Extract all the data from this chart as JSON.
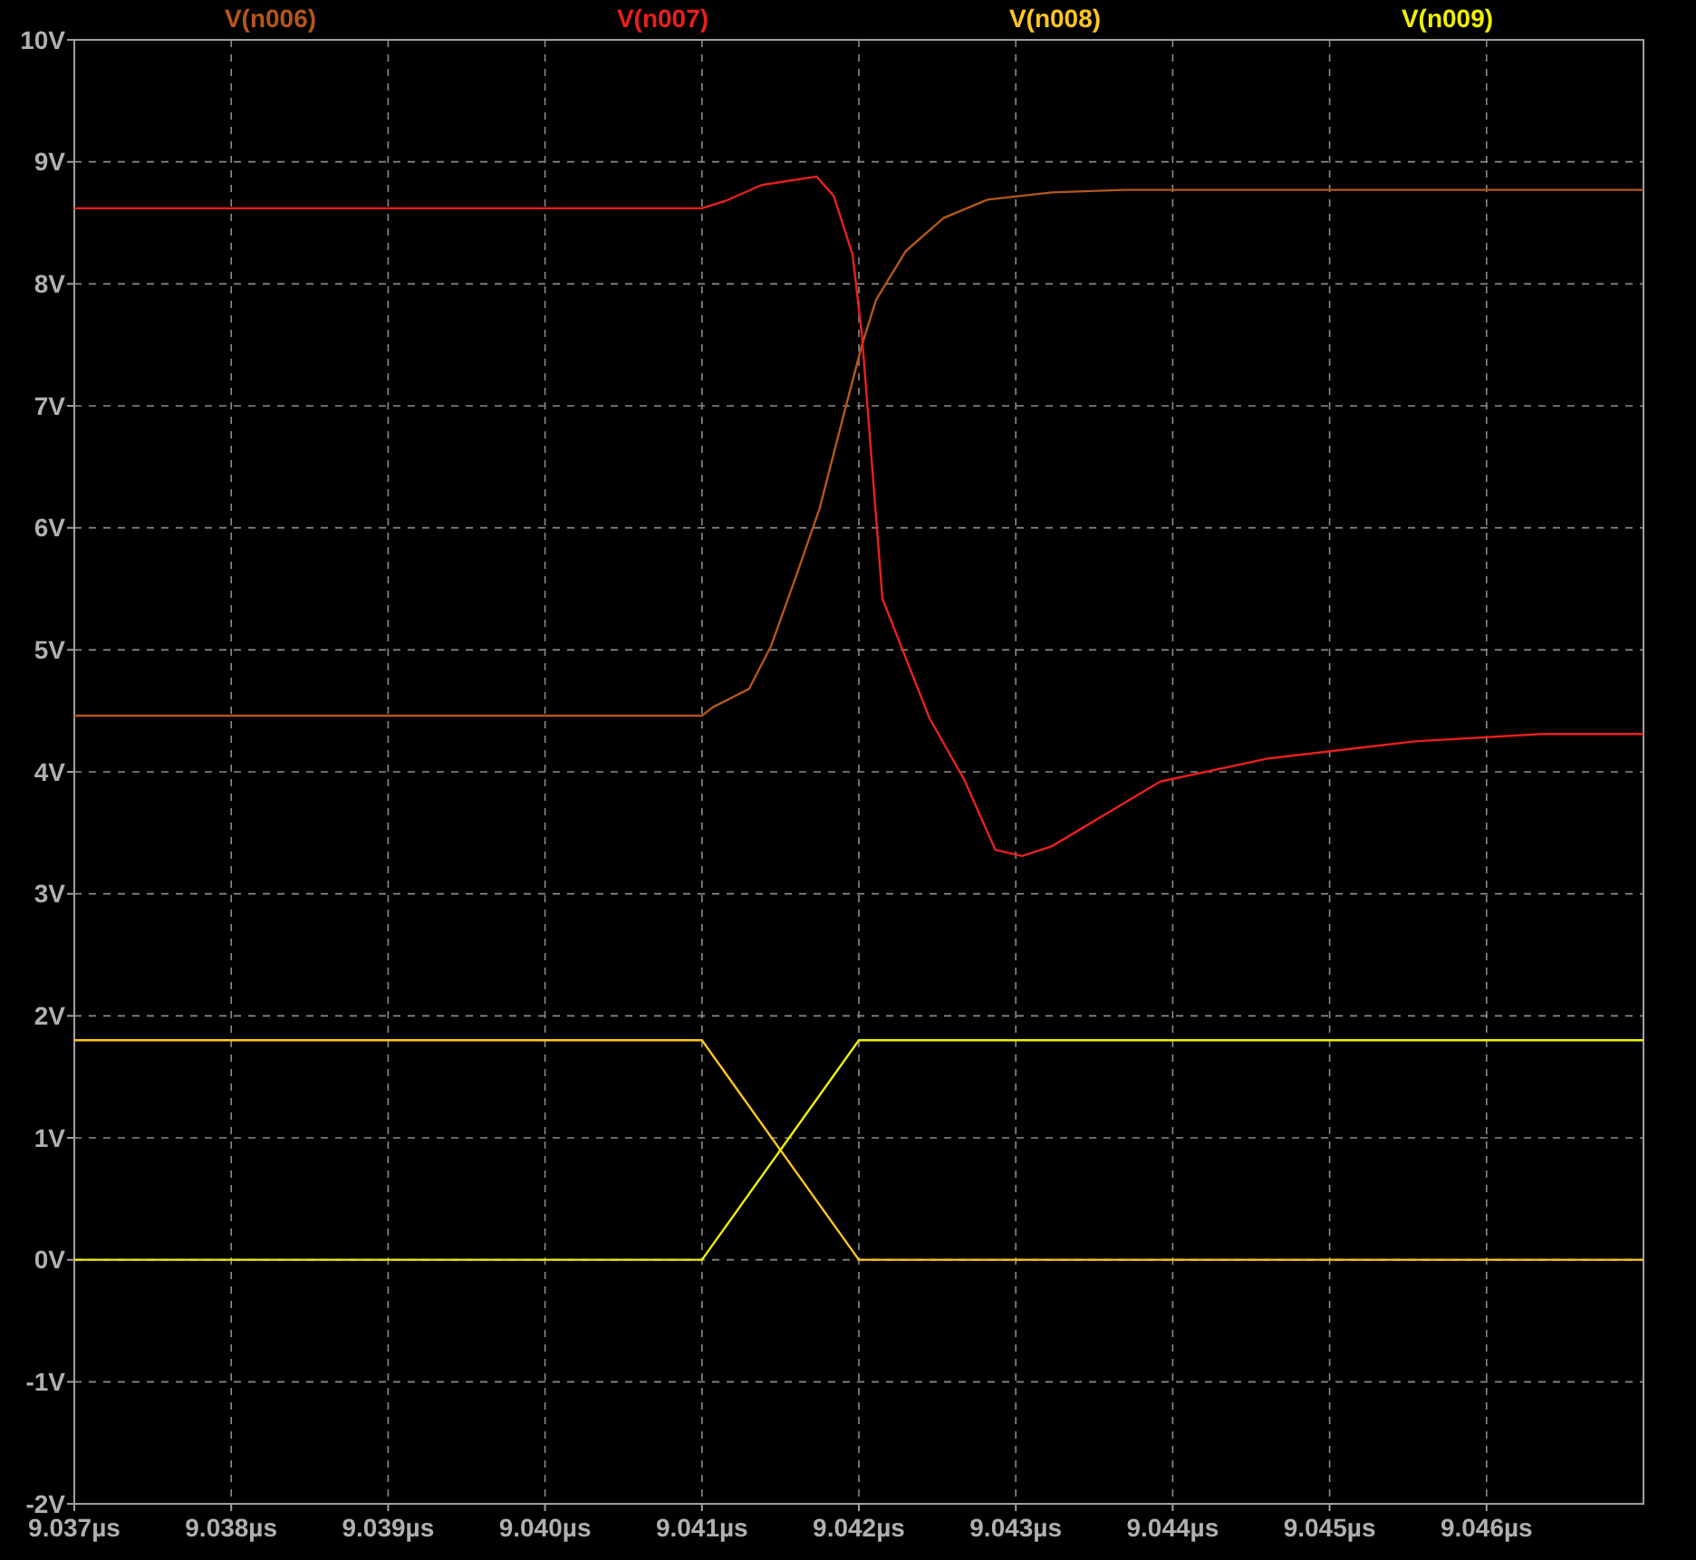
{
  "chart_data": {
    "type": "line",
    "xlim": [
      9.037,
      9.047
    ],
    "xticks": [
      {
        "value": 9.037,
        "label": "9.037µs"
      },
      {
        "value": 9.038,
        "label": "9.038µs"
      },
      {
        "value": 9.039,
        "label": "9.039µs"
      },
      {
        "value": 9.04,
        "label": "9.040µs"
      },
      {
        "value": 9.041,
        "label": "9.041µs"
      },
      {
        "value": 9.042,
        "label": "9.042µs"
      },
      {
        "value": 9.043,
        "label": "9.043µs"
      },
      {
        "value": 9.044,
        "label": "9.044µs"
      },
      {
        "value": 9.045,
        "label": "9.045µs"
      },
      {
        "value": 9.046,
        "label": "9.046µs"
      }
    ],
    "ylim": [
      -2,
      10
    ],
    "yticks": [
      {
        "value": -2,
        "label": "-2V"
      },
      {
        "value": -1,
        "label": "-1V"
      },
      {
        "value": 0,
        "label": "0V"
      },
      {
        "value": 1,
        "label": "1V"
      },
      {
        "value": 2,
        "label": "2V"
      },
      {
        "value": 3,
        "label": "3V"
      },
      {
        "value": 4,
        "label": "4V"
      },
      {
        "value": 5,
        "label": "5V"
      },
      {
        "value": 6,
        "label": "6V"
      },
      {
        "value": 7,
        "label": "7V"
      },
      {
        "value": 8,
        "label": "8V"
      },
      {
        "value": 9,
        "label": "9V"
      },
      {
        "value": 10,
        "label": "10V"
      }
    ],
    "grid": true,
    "legend": "top",
    "line_style": "solid",
    "series": [
      {
        "name": "V(n006)",
        "color": "#b4561e",
        "x": [
          9.037,
          9.041,
          9.04107,
          9.0413,
          9.04144,
          9.04161,
          9.04175,
          9.0419,
          9.04202,
          9.04211,
          9.0423,
          9.04254,
          9.04282,
          9.04323,
          9.04369,
          9.047
        ],
        "values": [
          4.46,
          4.46,
          4.53,
          4.68,
          5.03,
          5.64,
          6.16,
          6.91,
          7.5,
          7.87,
          8.27,
          8.54,
          8.69,
          8.75,
          8.77,
          8.77
        ]
      },
      {
        "name": "V(n007)",
        "color": "#e8201e",
        "x": [
          9.037,
          9.041,
          9.04115,
          9.04138,
          9.04173,
          9.04184,
          9.04196,
          9.04202,
          9.04215,
          9.04245,
          9.04267,
          9.04287,
          9.04304,
          9.04323,
          9.04392,
          9.04461,
          9.04554,
          9.04635,
          9.047
        ],
        "values": [
          8.62,
          8.62,
          8.68,
          8.81,
          8.88,
          8.72,
          8.24,
          7.57,
          5.42,
          4.44,
          3.94,
          3.36,
          3.31,
          3.39,
          3.92,
          4.11,
          4.25,
          4.31,
          4.31
        ]
      },
      {
        "name": "V(n008)",
        "color": "#ffc61e",
        "x": [
          9.037,
          9.041,
          9.042,
          9.047
        ],
        "values": [
          1.8,
          1.8,
          0,
          0
        ]
      },
      {
        "name": "V(n009)",
        "color": "#f0f000",
        "x": [
          9.037,
          9.041,
          9.042,
          9.047
        ],
        "values": [
          0,
          0,
          1.8,
          1.8
        ]
      }
    ]
  }
}
